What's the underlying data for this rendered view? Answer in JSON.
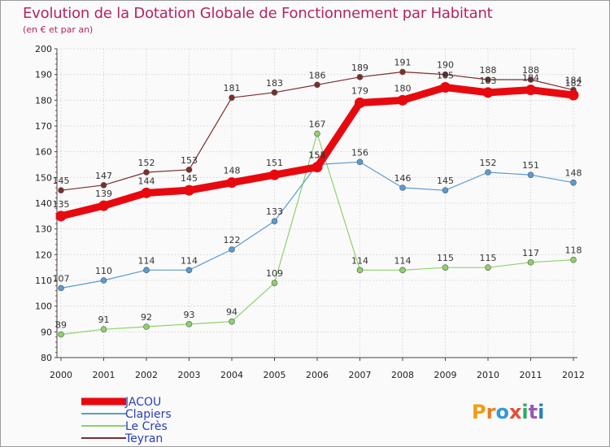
{
  "chart_data": {
    "type": "line",
    "title": "Evolution de la Dotation Globale de Fonctionnement par Habitant",
    "subtitle": "(en € et par an)",
    "xlabel": "",
    "ylabel": "",
    "ylim": [
      80,
      200
    ],
    "yticks": [
      80,
      90,
      100,
      110,
      120,
      130,
      140,
      150,
      160,
      170,
      180,
      190,
      200
    ],
    "categories": [
      "2000",
      "2001",
      "2002",
      "2003",
      "2004",
      "2005",
      "2006",
      "2007",
      "2008",
      "2009",
      "2010",
      "2011",
      "2012"
    ],
    "grid": true,
    "legend_position": "bottom-left",
    "series": [
      {
        "name": "JACOU",
        "color": "#e8090f",
        "values": [
          135,
          139,
          144,
          145,
          148,
          151,
          154,
          179,
          180,
          185,
          183,
          184,
          182
        ]
      },
      {
        "name": "Clapiers",
        "color": "#5a9bd2",
        "values": [
          107,
          110,
          114,
          114,
          122,
          133,
          155,
          156,
          146,
          145,
          152,
          151,
          148
        ]
      },
      {
        "name": "Le Crès",
        "color": "#8ed16b",
        "values": [
          89,
          91,
          92,
          93,
          94,
          109,
          167,
          114,
          114,
          115,
          115,
          117,
          118
        ]
      },
      {
        "name": "Teyran",
        "color": "#7a2e2e",
        "values": [
          145,
          147,
          152,
          153,
          181,
          183,
          186,
          189,
          191,
          190,
          188,
          188,
          184
        ]
      }
    ]
  },
  "logo": {
    "text": "Proxiti"
  }
}
